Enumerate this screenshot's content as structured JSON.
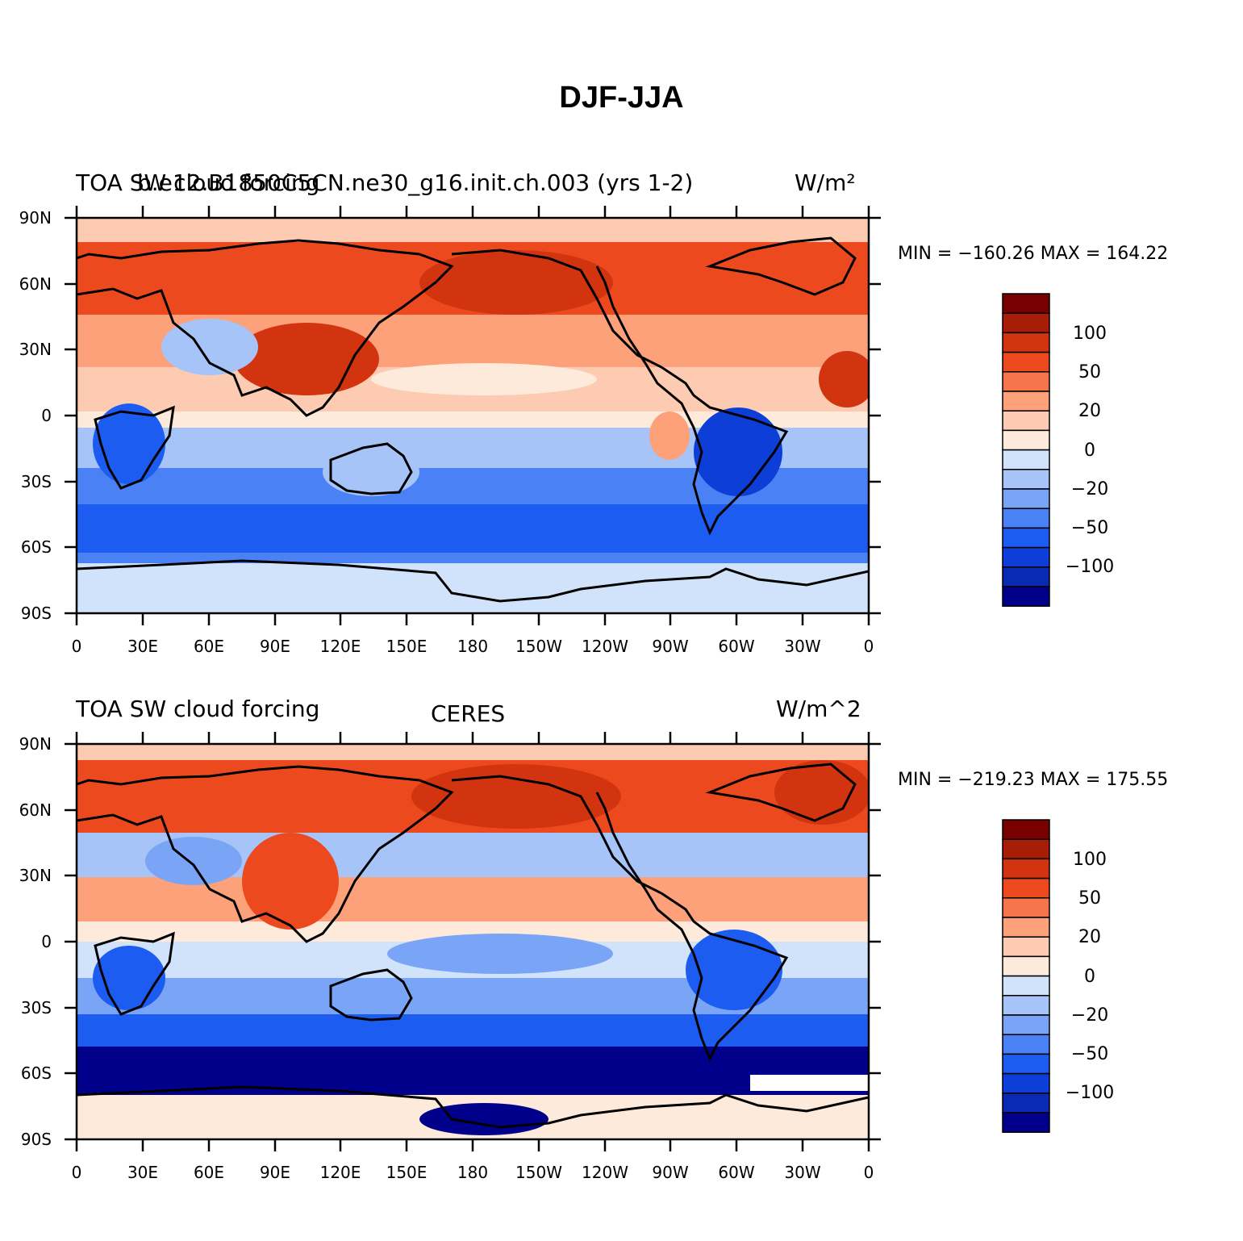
{
  "title": "DJF-JJA",
  "colorbar": {
    "colors": [
      "#00008a",
      "#0b2ab3",
      "#0d3fd8",
      "#1d5cf0",
      "#4a82f5",
      "#7aa4f6",
      "#a6c4f8",
      "#d1e3fb",
      "#feeadb",
      "#fdcbb1",
      "#fca17a",
      "#f8744a",
      "#ec4a1e",
      "#d23410",
      "#a81d08",
      "#780000"
    ],
    "labels": [
      "100",
      "50",
      "20",
      "0",
      "−20",
      "−50",
      "−100"
    ]
  },
  "panels": [
    {
      "left_text": "TOA SW cloud forcing",
      "center_text": "b.e12.B1850C5CN.ne30_g16.init.ch.003 (yrs 1-2)",
      "right_text": "W/m²",
      "min_max": "MIN = −160.26  MAX = 164.22"
    },
    {
      "left_text": "TOA SW cloud forcing",
      "center_text": "CERES",
      "right_text": "W/m^2",
      "min_max": "MIN = −219.23  MAX = 175.55"
    }
  ],
  "axes": {
    "lat_labels": [
      "90N",
      "60N",
      "30N",
      "0",
      "30S",
      "60S",
      "90S"
    ],
    "lon_labels": [
      "0",
      "30E",
      "60E",
      "90E",
      "120E",
      "150E",
      "180",
      "150W",
      "120W",
      "90W",
      "60W",
      "30W",
      "0"
    ]
  }
}
